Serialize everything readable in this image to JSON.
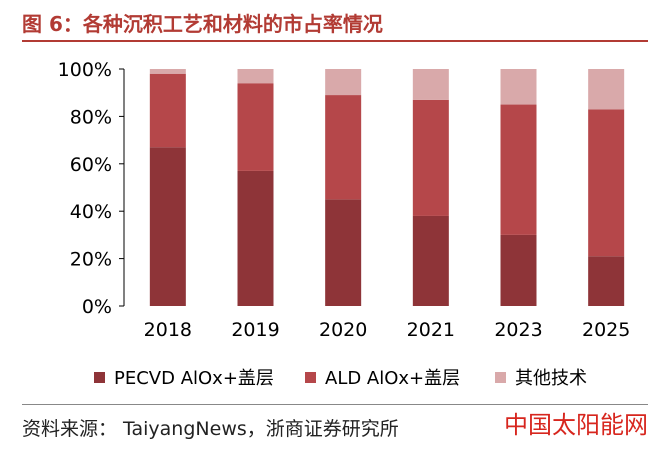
{
  "figure_title": "图 6：各种沉积工艺和材料的市占率情况",
  "source": "资料来源： TaiyangNews，浙商证券研究所",
  "watermark": "中国太阳能网",
  "chart_data": {
    "type": "bar",
    "stacked": true,
    "categories": [
      "2018",
      "2019",
      "2020",
      "2021",
      "2023",
      "2025"
    ],
    "series": [
      {
        "name": "PECVD AlOx+盖层",
        "color": "#8e3438",
        "values": [
          67,
          57,
          45,
          38,
          30,
          21
        ]
      },
      {
        "name": "ALD AlOx+盖层",
        "color": "#b5474a",
        "values": [
          31,
          37,
          44,
          49,
          55,
          62
        ]
      },
      {
        "name": "其他技术",
        "color": "#d9a9aa",
        "values": [
          2,
          6,
          11,
          13,
          15,
          17
        ]
      }
    ],
    "yticks": [
      "0%",
      "20%",
      "40%",
      "60%",
      "80%",
      "100%"
    ],
    "ylim": [
      0,
      100
    ],
    "legend_position": "bottom",
    "grid": false
  }
}
